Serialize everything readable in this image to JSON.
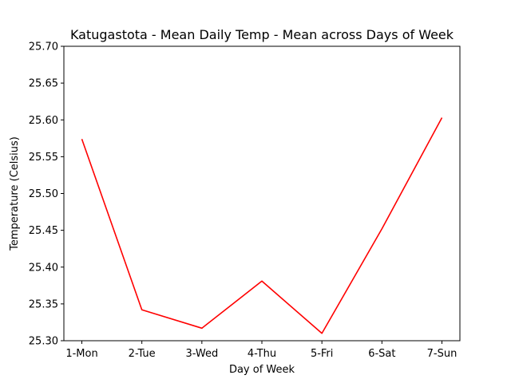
{
  "chart_data": {
    "type": "line",
    "title": "Katugastota - Mean Daily Temp - Mean across Days of Week",
    "xlabel": "Day of Week",
    "ylabel": "Temperature (Celsius)",
    "categories": [
      "1-Mon",
      "2-Tue",
      "3-Wed",
      "4-Thu",
      "5-Fri",
      "6-Sat",
      "7-Sun"
    ],
    "series": [
      {
        "values": [
          25.574,
          25.342,
          25.317,
          25.381,
          25.31,
          25.452,
          25.603
        ],
        "color": "#ff0000"
      }
    ],
    "ylim": [
      25.3,
      25.7
    ],
    "yticks": [
      "25.30",
      "25.35",
      "25.40",
      "25.45",
      "25.50",
      "25.55",
      "25.60",
      "25.65",
      "25.70"
    ],
    "grid": false,
    "legend": "none"
  }
}
